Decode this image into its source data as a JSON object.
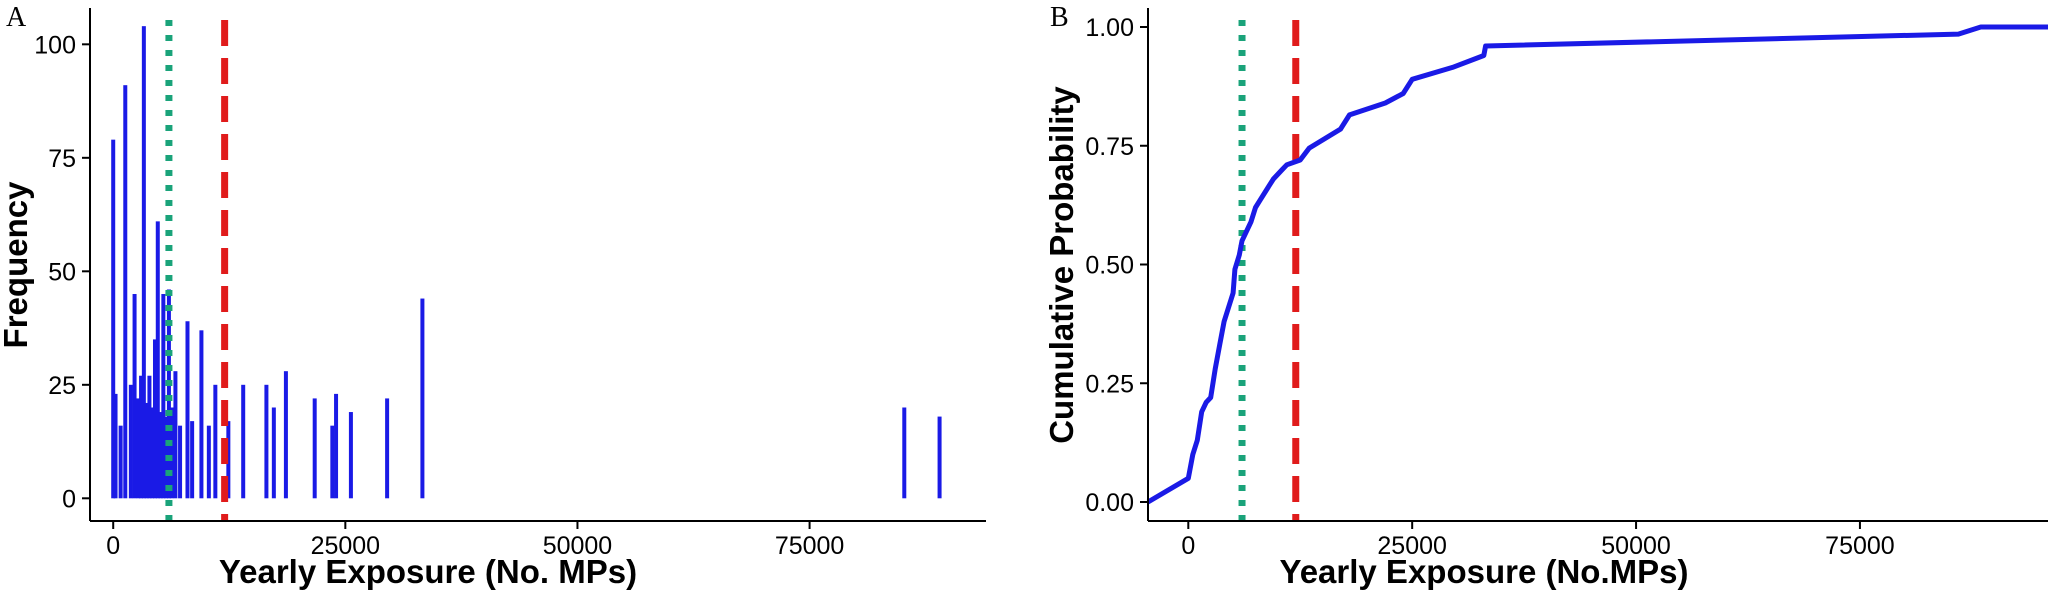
{
  "chart_data": [
    {
      "panel": "A",
      "type": "bar",
      "title": "",
      "xlabel": "Yearly Exposure (No. MPs)",
      "ylabel": "Frequency",
      "xlim": [
        -2500,
        94000
      ],
      "ylim": [
        -5,
        108
      ],
      "xticks": [
        0,
        25000,
        50000,
        75000
      ],
      "xtick_labels": [
        "0",
        "25000",
        "50000",
        "75000"
      ],
      "yticks": [
        0,
        25,
        50,
        75,
        100
      ],
      "ytick_labels": [
        "0",
        "25",
        "50",
        "75",
        "100"
      ],
      "grid": false,
      "bar_color": "#1a1ae6",
      "bars": {
        "x": [
          0,
          250,
          800,
          1300,
          1900,
          2300,
          2700,
          3000,
          3300,
          3600,
          3900,
          4200,
          4500,
          4800,
          5100,
          5400,
          5700,
          6000,
          6300,
          6700,
          7200,
          8000,
          8500,
          9500,
          10300,
          11000,
          12400,
          14000,
          16500,
          17300,
          18600,
          21700,
          23600,
          24000,
          25600,
          29500,
          33300,
          85200,
          89000
        ],
        "values": [
          79,
          23,
          16,
          91,
          25,
          45,
          22,
          27,
          104,
          21,
          27,
          20,
          35,
          61,
          19,
          45,
          18,
          46,
          20,
          28,
          16,
          39,
          17,
          37,
          16,
          25,
          17,
          25,
          25,
          20,
          28,
          22,
          16,
          23,
          19,
          22,
          44,
          20,
          18
        ]
      },
      "vlines": [
        {
          "x": 6000,
          "color": "#1aa37a",
          "style": "dotted"
        },
        {
          "x": 12000,
          "color": "#e01b1b",
          "style": "dashed"
        }
      ]
    },
    {
      "panel": "B",
      "type": "line",
      "title": "",
      "xlabel": "Yearly Exposure (No.MPs)",
      "ylabel": "Cumulative Probability",
      "xlim": [
        -4500,
        96000
      ],
      "ylim": [
        -0.04,
        1.04
      ],
      "xticks": [
        0,
        25000,
        50000,
        75000
      ],
      "xtick_labels": [
        "0",
        "25000",
        "50000",
        "75000"
      ],
      "yticks": [
        0,
        0.25,
        0.5,
        0.75,
        1
      ],
      "ytick_labels": [
        "0.00",
        "0.25",
        "0.50",
        "0.75",
        "1.00"
      ],
      "grid": false,
      "line_color": "#1a1ae6",
      "x": [
        -4500,
        0,
        500,
        1000,
        1500,
        2000,
        2500,
        3000,
        3500,
        4000,
        4500,
        5000,
        5200,
        5700,
        6000,
        7000,
        7500,
        8000,
        9000,
        9500,
        10500,
        11000,
        12500,
        13500,
        17000,
        18000,
        22000,
        24000,
        25000,
        29500,
        33000,
        33200,
        86000,
        88500,
        96000
      ],
      "values": [
        0.0,
        0.05,
        0.1,
        0.13,
        0.19,
        0.21,
        0.22,
        0.28,
        0.33,
        0.38,
        0.41,
        0.44,
        0.49,
        0.52,
        0.55,
        0.59,
        0.62,
        0.635,
        0.665,
        0.68,
        0.7,
        0.71,
        0.72,
        0.745,
        0.785,
        0.815,
        0.84,
        0.86,
        0.89,
        0.915,
        0.94,
        0.96,
        0.985,
        1.0,
        1.0
      ],
      "vlines": [
        {
          "x": 6000,
          "color": "#1aa37a",
          "style": "dotted"
        },
        {
          "x": 12000,
          "color": "#e01b1b",
          "style": "dashed"
        }
      ]
    }
  ]
}
